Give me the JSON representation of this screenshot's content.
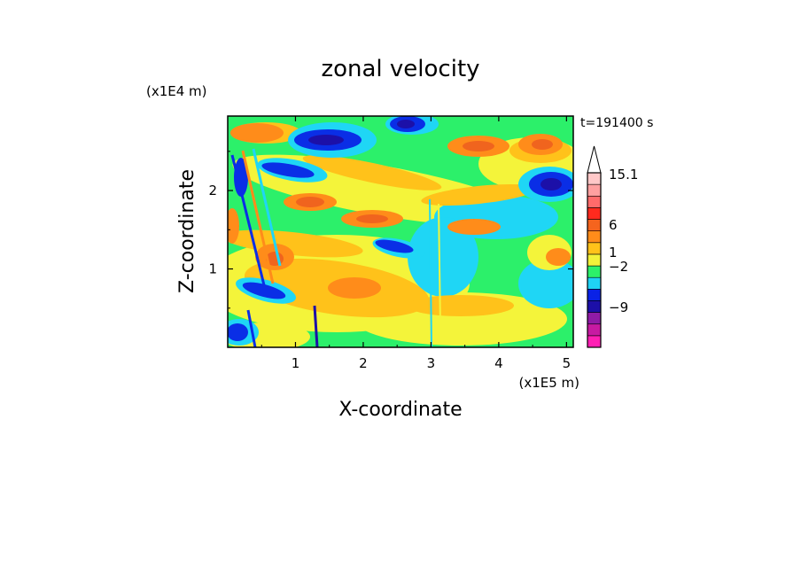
{
  "chart_data": {
    "type": "heatmap",
    "title": "zonal velocity",
    "xlabel": "X-coordinate",
    "ylabel": "Z-coordinate",
    "x_scale_label": "(x1E5 m)",
    "y_scale_label": "(x1E4 m)",
    "time_label": "t=191400 s",
    "xlim": [
      0,
      5.1
    ],
    "ylim": [
      0,
      2.95
    ],
    "x_ticks": [
      1,
      2,
      3,
      4,
      5
    ],
    "y_ticks": [
      1,
      2
    ],
    "colorbar": {
      "bands": [
        "#ff1fb4",
        "#c71aa2",
        "#8f1ba6",
        "#1c0fa8",
        "#0a22e6",
        "#1fd2f5",
        "#2cf06a",
        "#f2f23a",
        "#ffc21a",
        "#ff8c1a",
        "#f5641e",
        "#ff2a1e",
        "#ff6b6b",
        "#ffa0a0",
        "#ffc8c8"
      ],
      "tick_labels": [
        {
          "label": "15.1",
          "level": 15.1
        },
        {
          "label": "6",
          "level": 6
        },
        {
          "label": "1",
          "level": 1
        },
        {
          "label": "−2",
          "level": -2
        },
        {
          "label": "−9",
          "level": -9
        }
      ]
    },
    "palette": {
      "deep_blue": "#1c10a8",
      "blue": "#0a2ee6",
      "cyan": "#1fd6f5",
      "green": "#2cf06a",
      "yellow": "#f4f43a",
      "light_orange": "#ffc21a",
      "orange": "#ff8c1a",
      "red_orange": "#f0641e"
    }
  }
}
